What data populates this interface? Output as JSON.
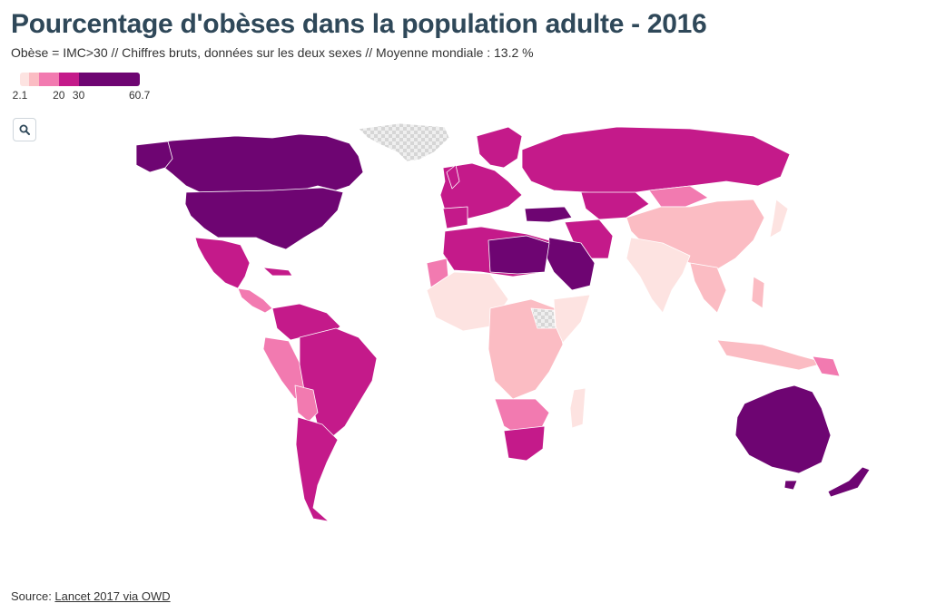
{
  "title": "Pourcentage d'obèses dans la population adulte - 2016",
  "subtitle": "Obèse = IMC>30 // Chiffres bruts, données sur les deux sexes // Moyenne mondiale : 13.2 %",
  "legend": {
    "min": 2.1,
    "max": 60.7,
    "ticks": [
      "2.1",
      "20",
      "30",
      "60.7"
    ],
    "tick_values": [
      2.1,
      20,
      30,
      60.7
    ],
    "bins": [
      {
        "from": 2.1,
        "to": 5,
        "color": "#fde3e1"
      },
      {
        "from": 5,
        "to": 10,
        "color": "#fbbcc3"
      },
      {
        "from": 10,
        "to": 20,
        "color": "#f27ab0"
      },
      {
        "from": 20,
        "to": 30,
        "color": "#c41a8a"
      },
      {
        "from": 30,
        "to": 60.7,
        "color": "#6e0572"
      }
    ],
    "no_data_color": "#d8d8d8"
  },
  "zoom": {
    "icon": "search-icon"
  },
  "source": {
    "prefix": "Source: ",
    "link": "Lancet 2017 via OWD"
  }
}
